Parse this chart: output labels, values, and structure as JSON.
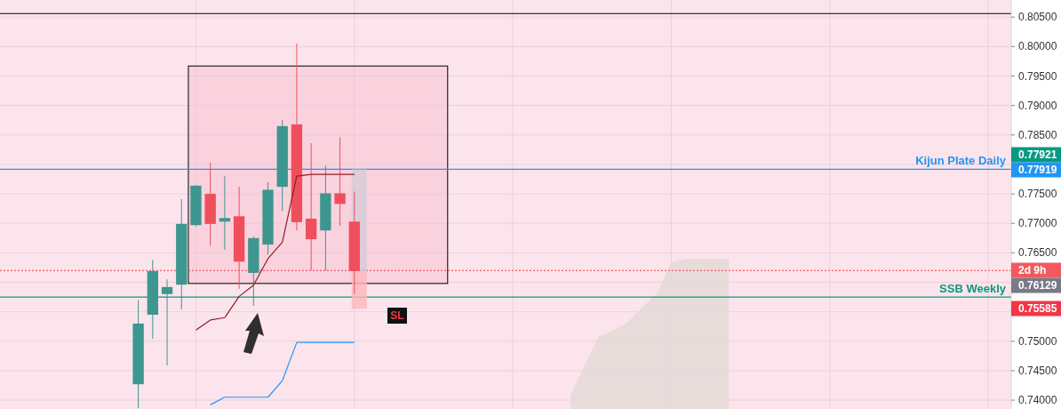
{
  "chart_data": {
    "type": "candlestick",
    "categories": [
      null,
      null,
      null,
      null,
      null,
      null,
      null,
      null,
      null,
      null,
      null,
      null,
      null,
      null,
      null,
      null,
      null,
      null,
      null,
      null,
      null,
      null,
      null,
      null,
      null,
      null,
      null,
      null,
      null,
      null,
      null,
      null,
      null,
      null,
      null,
      null,
      null,
      null,
      null,
      null,
      null,
      null,
      null,
      null,
      null,
      null,
      null,
      null,
      null,
      null,
      null,
      null,
      null,
      null,
      null,
      null,
      null,
      null,
      null,
      null,
      null,
      null,
      null,
      null,
      null,
      null,
      null,
      null,
      null,
      null
    ],
    "ohlc": [
      null,
      null,
      null,
      null,
      null,
      null,
      null,
      null,
      null,
      [
        0.7427,
        0.757,
        0.7386,
        0.753
      ],
      [
        0.7545,
        0.7638,
        0.7504,
        0.7619
      ],
      [
        0.758,
        0.7605,
        0.7459,
        0.7592
      ],
      [
        0.7596,
        0.7741,
        0.7554,
        0.7699
      ],
      [
        0.7697,
        0.7765,
        0.7695,
        0.7764
      ],
      [
        0.775,
        0.7803,
        0.7662,
        0.7699
      ],
      [
        0.7703,
        0.778,
        0.7655,
        0.7709
      ],
      [
        0.7712,
        0.7762,
        0.7589,
        0.7635
      ],
      [
        0.7616,
        0.7678,
        0.756,
        0.7675
      ],
      [
        0.7664,
        0.777,
        0.7647,
        0.7757
      ],
      [
        0.7762,
        0.7875,
        0.7721,
        0.7865
      ],
      [
        0.7868,
        0.8005,
        0.7688,
        0.7702
      ],
      [
        0.7708,
        0.7836,
        0.762,
        0.7673
      ],
      [
        0.7688,
        0.7798,
        0.762,
        0.7751
      ],
      [
        0.7751,
        0.7846,
        0.7696,
        0.7733
      ],
      [
        0.7703,
        0.7754,
        0.758,
        0.7619
      ],
      null,
      null,
      null,
      null,
      null,
      null,
      null,
      null,
      null,
      null,
      null,
      null,
      null,
      null,
      null,
      null,
      null,
      null,
      null,
      null,
      null,
      null,
      null,
      null,
      null,
      null,
      null,
      null,
      null,
      null,
      null,
      null,
      null,
      null,
      null,
      null,
      null,
      null,
      null,
      null,
      null,
      null,
      null,
      null,
      null
    ],
    "colors": [
      null,
      null,
      null,
      null,
      null,
      null,
      null,
      null,
      null,
      "#3d968f",
      "#3d968f",
      "#3d968f",
      "#3d968f",
      "#3d968f",
      "#ef4f5c",
      "#3d968f",
      "#ef4f5c",
      "#3d968f",
      "#3d968f",
      "#3d968f",
      "#ef4f5c",
      "#ef4f5c",
      "#3d968f",
      "#ef4f5c",
      "#ef4f5c",
      null,
      null,
      null,
      null,
      null,
      null,
      null,
      null,
      null,
      null,
      null,
      null,
      null,
      null,
      null,
      null,
      null,
      null,
      null,
      null,
      null,
      null,
      null,
      null,
      null,
      null,
      null,
      null,
      null,
      null,
      null,
      null,
      null,
      null,
      null,
      null,
      null,
      null,
      null,
      null,
      null,
      null,
      null,
      null,
      null
    ],
    "series": [
      {
        "type": "area",
        "color": "#e2d9d7",
        "values": [
          null,
          null,
          null,
          null,
          null,
          null,
          null,
          null,
          null,
          null,
          null,
          null,
          null,
          null,
          null,
          null,
          null,
          null,
          null,
          null,
          null,
          null,
          null,
          null,
          null,
          null,
          null,
          null,
          null,
          null,
          null,
          null,
          null,
          null,
          null,
          null,
          null,
          null,
          null,
          0.7408,
          0.746,
          0.7509,
          0.7518,
          0.7533,
          0.7558,
          0.7581,
          0.7634,
          0.764,
          0.764,
          0.764,
          0.764,
          null,
          null,
          null,
          null,
          null,
          null,
          null,
          null,
          null,
          null,
          null,
          null,
          null,
          null,
          null,
          null,
          null,
          null,
          null
        ]
      },
      {
        "type": "line",
        "color": "#8b1e24",
        "values": [
          null,
          null,
          null,
          null,
          null,
          null,
          null,
          null,
          null,
          null,
          null,
          null,
          null,
          0.7519,
          0.7536,
          0.754,
          0.7576,
          0.7595,
          0.764,
          0.7668,
          0.778,
          0.7783,
          0.7783,
          0.7783,
          0.7783,
          null,
          null,
          null,
          null,
          null,
          null,
          null,
          null,
          null,
          null,
          null,
          null,
          null,
          null,
          null,
          null,
          null,
          null,
          null,
          null,
          null,
          null,
          null,
          null,
          null,
          null,
          null,
          null,
          null,
          null,
          null,
          null,
          null,
          null,
          null,
          null,
          null,
          null,
          null,
          null,
          null,
          null,
          null,
          null,
          null
        ]
      },
      {
        "type": "line",
        "color": "#2196f3",
        "values": [
          null,
          null,
          null,
          null,
          null,
          null,
          null,
          null,
          null,
          null,
          null,
          null,
          null,
          null,
          0.7392,
          0.7405,
          0.7405,
          0.7405,
          0.7405,
          0.7433,
          0.7498,
          0.7498,
          0.7498,
          0.7498,
          0.7498,
          null,
          null,
          null,
          null,
          null,
          null,
          null,
          null,
          null,
          null,
          null,
          null,
          null,
          null,
          null,
          null,
          null,
          null,
          null,
          null,
          null,
          null,
          null,
          null,
          null,
          null,
          null,
          null,
          null,
          null,
          null,
          null,
          null,
          null,
          null,
          null,
          null,
          null,
          null,
          null,
          null,
          null,
          null,
          null,
          null
        ]
      }
    ],
    "ylim": [
      0.7385,
      0.8079
    ],
    "yticks": [
      {
        "value": 0.74,
        "label": "0.74000"
      },
      {
        "value": 0.745,
        "label": "0.74500"
      },
      {
        "value": 0.75,
        "label": "0.75000"
      },
      {
        "value": 0.755,
        "label": null
      },
      {
        "value": 0.76,
        "label": null
      },
      {
        "value": 0.765,
        "label": "0.76500"
      },
      {
        "value": 0.77,
        "label": "0.77000"
      },
      {
        "value": 0.775,
        "label": "0.77500"
      },
      {
        "value": 0.78,
        "label": null
      },
      {
        "value": 0.785,
        "label": "0.78500"
      },
      {
        "value": 0.79,
        "label": "0.79000"
      },
      {
        "value": 0.795,
        "label": "0.79500"
      },
      {
        "value": 0.8,
        "label": "0.80000"
      },
      {
        "value": 0.805,
        "label": "0.80500"
      }
    ],
    "grid": true,
    "ref_lines": [
      {
        "axis": "y",
        "value": 0.77919,
        "label": "Kijun Plate Daily",
        "color": "#2196f3"
      },
      {
        "axis": "y",
        "value": 0.7575,
        "label": "SSB Weekly",
        "color": "#089981"
      },
      {
        "axis": "y",
        "value": 0.762,
        "color": "#f23645",
        "line_style": "dotted"
      },
      {
        "axis": "y",
        "value": 0.8056,
        "color": "#000000"
      }
    ],
    "annotations": [
      "0.77921",
      "0.77919",
      "2d 9h",
      "0.76129",
      "0.75585",
      "SL"
    ]
  }
}
